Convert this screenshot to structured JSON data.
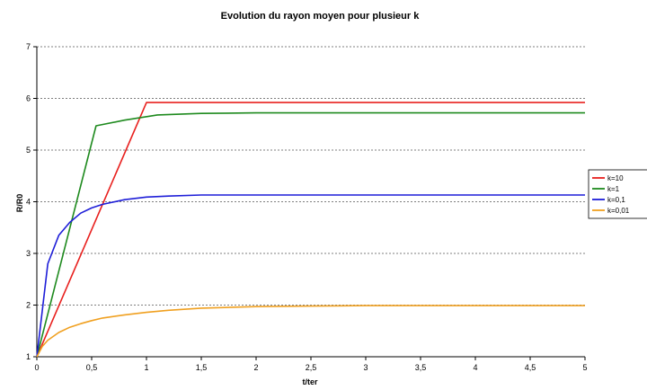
{
  "chart_data": {
    "type": "line",
    "title": "Evolution du rayon moyen pour plusieur k",
    "xlabel": "t/ter",
    "ylabel": "R/R0",
    "xlim": [
      0,
      5
    ],
    "ylim": [
      1,
      7
    ],
    "x_ticks": [
      "0",
      "0,5",
      "1",
      "1,5",
      "2",
      "2,5",
      "3",
      "3,5",
      "4",
      "4,5",
      "5"
    ],
    "y_ticks": [
      "1",
      "2",
      "3",
      "4",
      "5",
      "6",
      "7"
    ],
    "grid": "horizontal dashed",
    "legend_position": "right",
    "series": [
      {
        "name": "k=10",
        "color": "#e8201e",
        "x": [
          0,
          1,
          5
        ],
        "y": [
          1,
          5.92,
          5.92
        ]
      },
      {
        "name": "k=1",
        "color": "#1e8a1e",
        "x": [
          0,
          0.54,
          0.8,
          1.1,
          1.5,
          2,
          3,
          4,
          5
        ],
        "y": [
          1,
          5.47,
          5.58,
          5.68,
          5.71,
          5.72,
          5.72,
          5.72,
          5.72
        ]
      },
      {
        "name": "k=0,1",
        "color": "#1e1ed8",
        "x": [
          0,
          0.1,
          0.2,
          0.3,
          0.4,
          0.5,
          0.6,
          0.8,
          1.0,
          1.2,
          1.5,
          2,
          3,
          4,
          5
        ],
        "y": [
          1,
          2.8,
          3.35,
          3.6,
          3.78,
          3.88,
          3.95,
          4.04,
          4.09,
          4.11,
          4.13,
          4.13,
          4.13,
          4.13,
          4.13
        ]
      },
      {
        "name": "k=0,01",
        "color": "#f0a020",
        "x": [
          0,
          0.05,
          0.1,
          0.2,
          0.3,
          0.4,
          0.5,
          0.6,
          0.8,
          1.0,
          1.2,
          1.5,
          2,
          2.5,
          3,
          4,
          5
        ],
        "y": [
          1,
          1.2,
          1.32,
          1.47,
          1.57,
          1.64,
          1.7,
          1.75,
          1.81,
          1.86,
          1.9,
          1.94,
          1.97,
          1.98,
          1.99,
          1.99,
          1.99
        ]
      }
    ]
  }
}
